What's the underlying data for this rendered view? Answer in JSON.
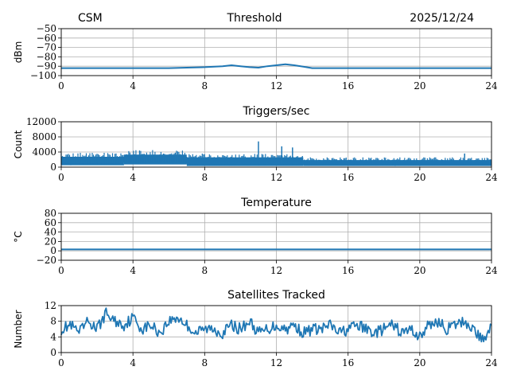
{
  "header": {
    "left": "CSM",
    "center": "Threshold",
    "right": "2025/12/24"
  },
  "colors": {
    "series": "#1f77b4",
    "grid": "#b0b0b0"
  },
  "chart_data": [
    {
      "type": "line",
      "title": "",
      "ylabel": "dBm",
      "xlim": [
        0,
        24
      ],
      "ylim": [
        -100,
        -50
      ],
      "xticks": [
        "0",
        "4",
        "8",
        "12",
        "16",
        "20",
        "24"
      ],
      "yticks": [
        "−50",
        "−60",
        "−70",
        "−80",
        "−90",
        "−100"
      ],
      "x": [
        0,
        2,
        4,
        6,
        7,
        8,
        9,
        9.5,
        10,
        10.5,
        11,
        11.5,
        12,
        12.5,
        13,
        13.5,
        14,
        16,
        18,
        20,
        22,
        24
      ],
      "values": [
        -92,
        -92,
        -92,
        -92,
        -91.5,
        -91,
        -90,
        -89,
        -90,
        -91,
        -91.5,
        -90,
        -89,
        -88,
        -89,
        -90.5,
        -92,
        -92,
        -92,
        -92,
        -92,
        -92
      ],
      "grid": true
    },
    {
      "type": "line",
      "title": "Triggers/sec",
      "ylabel": "Count",
      "xlim": [
        0,
        24
      ],
      "ylim": [
        0,
        12000
      ],
      "xticks": [
        "0",
        "4",
        "8",
        "12",
        "16",
        "20",
        "24"
      ],
      "yticks": [
        "12000",
        "8000",
        "4000",
        "0"
      ],
      "segments": [
        {
          "x0": 0,
          "x1": 3.5,
          "low": 500,
          "high": 3800
        },
        {
          "x0": 3.5,
          "x1": 7,
          "low": 700,
          "high": 4600
        },
        {
          "x0": 7,
          "x1": 13.5,
          "low": 300,
          "high": 3600
        },
        {
          "x0": 13.5,
          "x1": 24,
          "low": 300,
          "high": 2600
        }
      ],
      "spikes": [
        {
          "x": 11.0,
          "y": 6800
        },
        {
          "x": 12.3,
          "y": 5500
        },
        {
          "x": 12.9,
          "y": 5200
        },
        {
          "x": 22.5,
          "y": 3600
        }
      ],
      "grid": true
    },
    {
      "type": "line",
      "title": "Temperature",
      "ylabel": "°C",
      "xlim": [
        0,
        24
      ],
      "ylim": [
        -20,
        80
      ],
      "xticks": [
        "0",
        "4",
        "8",
        "12",
        "16",
        "20",
        "24"
      ],
      "yticks": [
        "80",
        "60",
        "40",
        "20",
        "0",
        "−20"
      ],
      "x": [
        0,
        24
      ],
      "values": [
        3,
        3
      ],
      "grid": true
    },
    {
      "type": "line",
      "title": "Satellites Tracked",
      "ylabel": "Number",
      "xlim": [
        0,
        24
      ],
      "ylim": [
        0,
        12
      ],
      "xticks": [
        "0",
        "4",
        "8",
        "12",
        "16",
        "20",
        "24"
      ],
      "yticks": [
        "12",
        "8",
        "4",
        "0"
      ],
      "x": [
        0,
        0.5,
        1,
        1.5,
        2,
        2.5,
        3,
        3.5,
        4,
        4.5,
        5,
        5.5,
        6,
        6.5,
        7,
        7.5,
        8,
        8.5,
        9,
        9.5,
        10,
        10.5,
        11,
        11.5,
        12,
        12.5,
        13,
        13.5,
        14,
        14.5,
        15,
        15.5,
        16,
        16.5,
        17,
        17.5,
        18,
        18.5,
        19,
        19.5,
        20,
        20.5,
        21,
        21.5,
        22,
        22.5,
        23,
        23.5,
        24
      ],
      "values": [
        6,
        7,
        5,
        8,
        6,
        10,
        8,
        7,
        9,
        6,
        7,
        5,
        8,
        9,
        7,
        5,
        6,
        6,
        5,
        7,
        6,
        8,
        5,
        6,
        7,
        6,
        7,
        5,
        6,
        6,
        7,
        5,
        6,
        7,
        6,
        5,
        6,
        7,
        5,
        6,
        4,
        7,
        8,
        6,
        7,
        8,
        6,
        3,
        7
      ],
      "grid": true
    }
  ]
}
